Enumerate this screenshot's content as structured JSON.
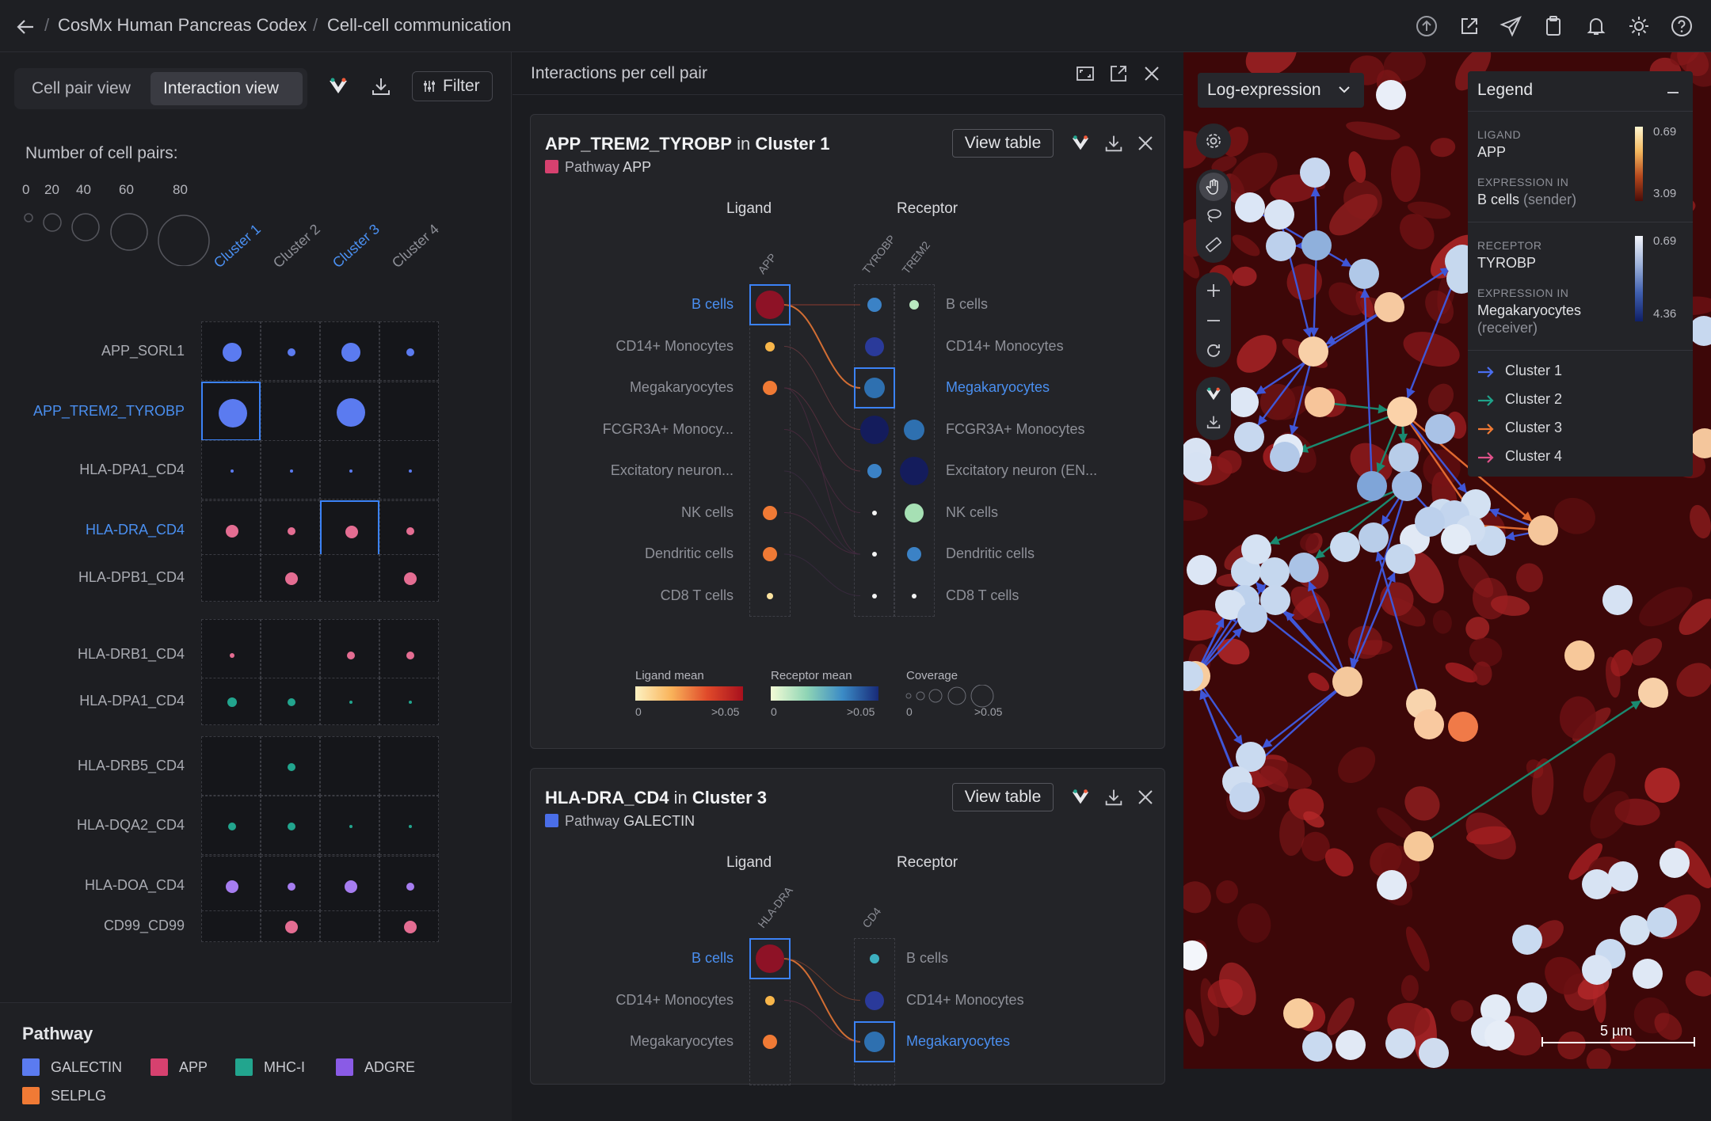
{
  "topbar": {
    "project": "CosMx Human Pancreas Codex",
    "page": "Cell-cell communication"
  },
  "left": {
    "views": [
      "Cell pair view",
      "Interaction view"
    ],
    "active_view": "Interaction view",
    "filter_label": "Filter",
    "num_pairs_label": "Number of cell pairs:",
    "size_legend": [
      "0",
      "20",
      "40",
      "60",
      "80"
    ],
    "columns": [
      "Cluster 1",
      "Cluster 2",
      "Cluster 3",
      "Cluster 4"
    ],
    "rows": [
      "APP_SORL1",
      "APP_TREM2_TYROBP",
      "HLA-DPA1_CD4",
      "HLA-DRA_CD4",
      "HLA-DPB1_CD4",
      "HLA-DRB1_CD4",
      "HLA-DPA1_CD4",
      "HLA-DRB5_CD4",
      "HLA-DQA2_CD4",
      "HLA-DOA_CD4",
      "CD99_CD99"
    ]
  },
  "pathway": {
    "title": "Pathway",
    "items": [
      {
        "name": "GALECTIN",
        "color": "#5b7bf0"
      },
      {
        "name": "APP",
        "color": "#d6416f"
      },
      {
        "name": "MHC-I",
        "color": "#22a58e"
      },
      {
        "name": "ADGRE",
        "color": "#8a5be6"
      },
      {
        "name": "SELPLG",
        "color": "#f07a35"
      }
    ]
  },
  "middle": {
    "title": "Interactions per cell pair",
    "view_table": "View table",
    "ligand_head": "Ligand",
    "receptor_head": "Receptor",
    "cards": [
      {
        "interaction": "APP_TREM2_TYROBP",
        "in_word": "in",
        "cluster": "Cluster 1",
        "pathway_word": "Pathway",
        "pathway": "APP",
        "pathway_color": "#d6416f",
        "ligand_genes": [
          "APP"
        ],
        "receptor_genes": [
          "TYROBP",
          "TREM2"
        ],
        "left_cells": [
          "B cells",
          "CD14+ Monocytes",
          "Megakaryocytes",
          "FCGR3A+ Monocy...",
          "Excitatory neuron...",
          "NK cells",
          "Dendritic cells",
          "CD8 T cells"
        ],
        "right_cells": [
          "B cells",
          "CD14+ Monocytes",
          "Megakaryocytes",
          "FCGR3A+ Monocytes",
          "Excitatory neuron (EN...",
          "NK cells",
          "Dendritic cells",
          "CD8 T cells"
        ]
      },
      {
        "interaction": "HLA-DRA_CD4",
        "in_word": "in",
        "cluster": "Cluster 3",
        "pathway_word": "Pathway",
        "pathway": "GALECTIN",
        "pathway_color": "#4a6ee8",
        "ligand_genes": [
          "HLA-DRA"
        ],
        "receptor_genes": [
          "CD4"
        ],
        "left_cells": [
          "B cells",
          "CD14+ Monocytes",
          "Megakaryocytes"
        ],
        "right_cells": [
          "B cells",
          "CD14+ Monocytes",
          "Megakaryocytes"
        ]
      }
    ],
    "colorbars": {
      "ligand": {
        "label": "Ligand mean",
        "min": "0",
        "max": ">0.05"
      },
      "receptor": {
        "label": "Receptor mean",
        "min": "0",
        "max": ">0.05"
      },
      "coverage": {
        "label": "Coverage",
        "min": "0",
        "max": ">0.05"
      }
    }
  },
  "image": {
    "dropdown": "Log-expression",
    "scale": "5 µm",
    "legend": {
      "title": "Legend",
      "ligand_label": "LIGAND",
      "ligand": "APP",
      "expr_in_label": "EXPRESSION IN",
      "sender": "B cells",
      "sender_role": "(sender)",
      "ligand_max": "0.69",
      "ligand_min": "3.09",
      "receptor_label": "RECEPTOR",
      "receptor": "TYROBP",
      "receiver": "Megakaryocytes",
      "receiver_role": "(receiver)",
      "receptor_max": "0.69",
      "receptor_min": "4.36",
      "clusters": [
        {
          "name": "Cluster 1",
          "color": "#4a6ef0"
        },
        {
          "name": "Cluster 2",
          "color": "#1fa38a"
        },
        {
          "name": "Cluster 3",
          "color": "#f07a35"
        },
        {
          "name": "Cluster 4",
          "color": "#e0528a"
        }
      ]
    }
  }
}
